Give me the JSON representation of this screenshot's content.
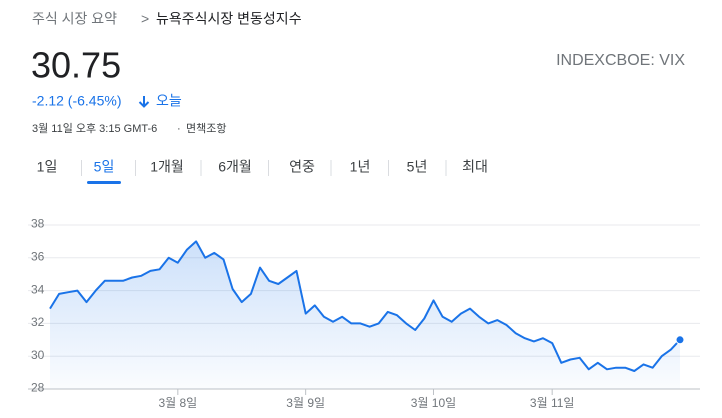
{
  "breadcrumb": {
    "root": "주식 시장 요약",
    "separator": ">",
    "current": "뉴욕주식시장 변동성지수"
  },
  "quote": {
    "price": "30.75",
    "ticker": "INDEXCBOE: VIX",
    "change": "-2.12 (-6.45%)",
    "period": "오늘",
    "timestamp": "3월 11일 오후 3:15 GMT-6",
    "separator": "·",
    "disclaimer": "면책조항"
  },
  "tabs": {
    "items": [
      "1일",
      "5일",
      "1개월",
      "6개월",
      "연중",
      "1년",
      "5년",
      "최대"
    ],
    "selected": 1
  },
  "chart_data": {
    "type": "line",
    "color": "#1a73e8",
    "grid": true,
    "categories": [
      null,
      null,
      null,
      null,
      null,
      null,
      null,
      null,
      null,
      null,
      null,
      null,
      null,
      null,
      "3월 8일",
      null,
      null,
      null,
      null,
      null,
      null,
      null,
      null,
      null,
      null,
      null,
      null,
      null,
      "3월 9일",
      null,
      null,
      null,
      null,
      null,
      null,
      null,
      null,
      null,
      null,
      null,
      null,
      null,
      "3월 10일",
      null,
      null,
      null,
      null,
      null,
      null,
      null,
      null,
      null,
      null,
      null,
      null,
      "3월 11일",
      null,
      null,
      null,
      null,
      null,
      null,
      null,
      null,
      null,
      null,
      null,
      null,
      null,
      null
    ],
    "values": [
      32.9,
      33.8,
      33.9,
      34.0,
      33.3,
      34.0,
      34.6,
      34.6,
      34.6,
      34.8,
      34.9,
      35.2,
      35.3,
      36.0,
      35.7,
      36.5,
      37.0,
      36.0,
      36.3,
      35.9,
      34.1,
      33.3,
      33.8,
      35.4,
      34.6,
      34.4,
      34.8,
      35.2,
      32.6,
      33.1,
      32.4,
      32.1,
      32.4,
      32.0,
      32.0,
      31.8,
      32.0,
      32.7,
      32.5,
      32.0,
      31.6,
      32.3,
      33.4,
      32.4,
      32.1,
      32.6,
      32.9,
      32.4,
      32.0,
      32.2,
      31.9,
      31.4,
      31.1,
      30.9,
      31.1,
      30.8,
      29.6,
      29.8,
      29.9,
      29.2,
      29.6,
      29.2,
      29.3,
      29.3,
      29.1,
      29.5,
      29.3,
      30.0,
      30.4,
      31.0
    ],
    "ylim": [
      28,
      38
    ],
    "yticks": [
      28,
      30,
      32,
      34,
      36,
      38
    ]
  }
}
